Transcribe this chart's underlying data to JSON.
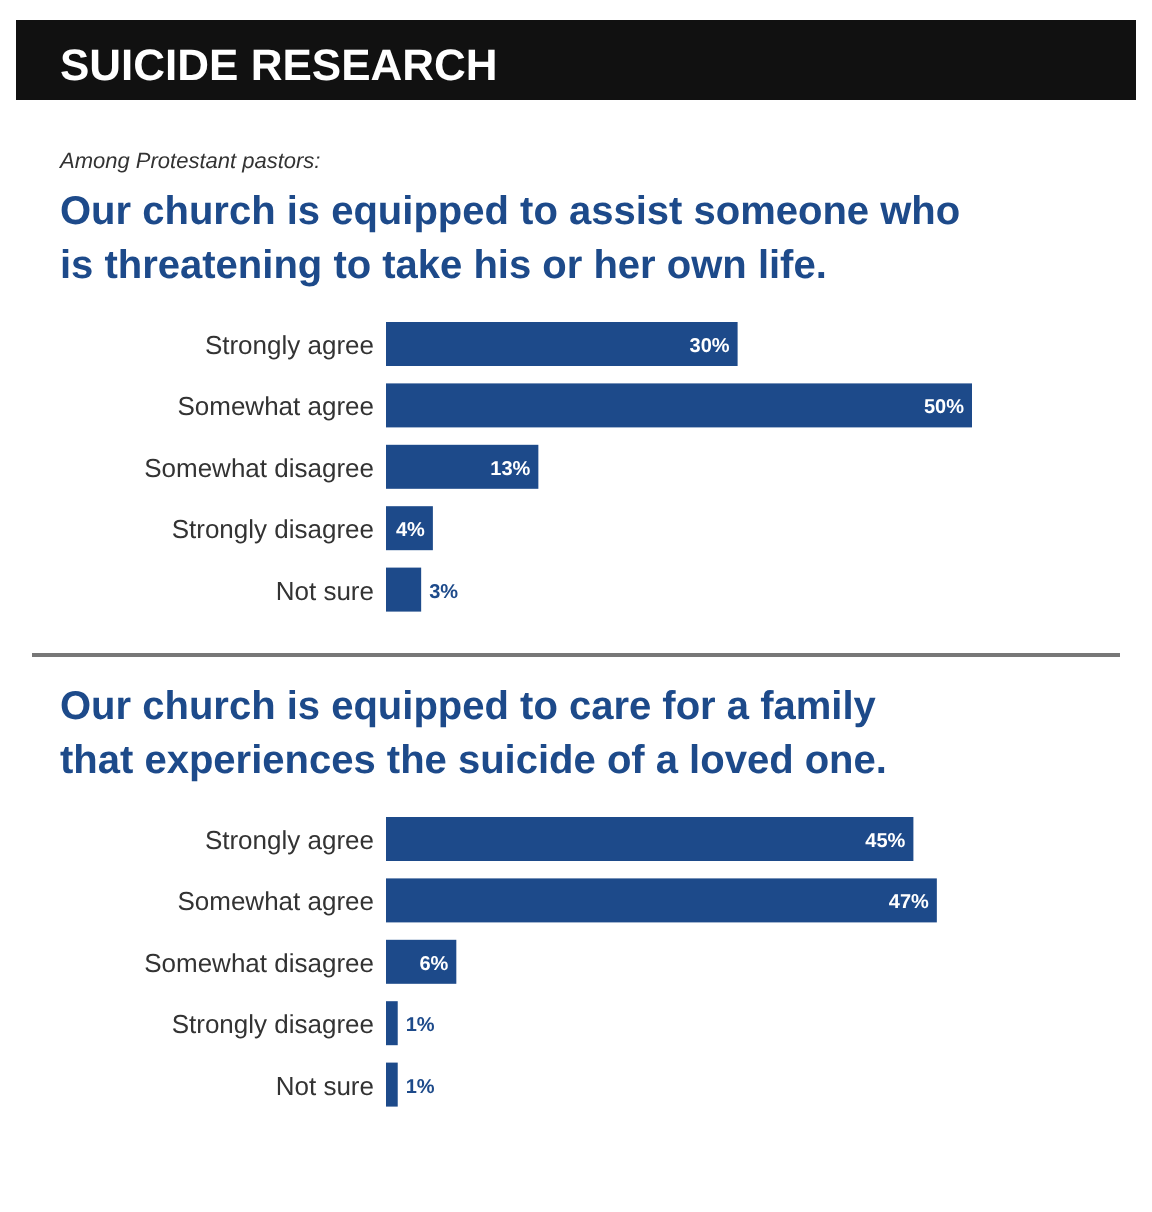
{
  "chart_data": [
    {
      "type": "bar",
      "orientation": "horizontal",
      "annotations": [
        "SUICIDE RESEARCH"
      ],
      "subtitle": "Among Protestant pastors:",
      "title": "Our church is equipped to assist someone who is threatening to take his or her own life.",
      "categories": [
        "Strongly agree",
        "Somewhat agree",
        "Somewhat disagree",
        "Strongly disagree",
        "Not sure"
      ],
      "values": [
        30,
        50,
        13,
        4,
        3
      ],
      "value_labels": [
        "30%",
        "50%",
        "13%",
        "4%",
        "3%"
      ],
      "color": "#1d4a8a"
    },
    {
      "type": "bar",
      "orientation": "horizontal",
      "title": "Our church is equipped to care for a family that experiences the suicide of a loved one.",
      "categories": [
        "Strongly agree",
        "Somewhat agree",
        "Somewhat disagree",
        "Strongly disagree",
        "Not sure"
      ],
      "values": [
        45,
        47,
        6,
        1,
        1
      ],
      "value_labels": [
        "45%",
        "47%",
        "6%",
        "1%",
        "1%"
      ],
      "color": "#1d4a8a"
    }
  ]
}
